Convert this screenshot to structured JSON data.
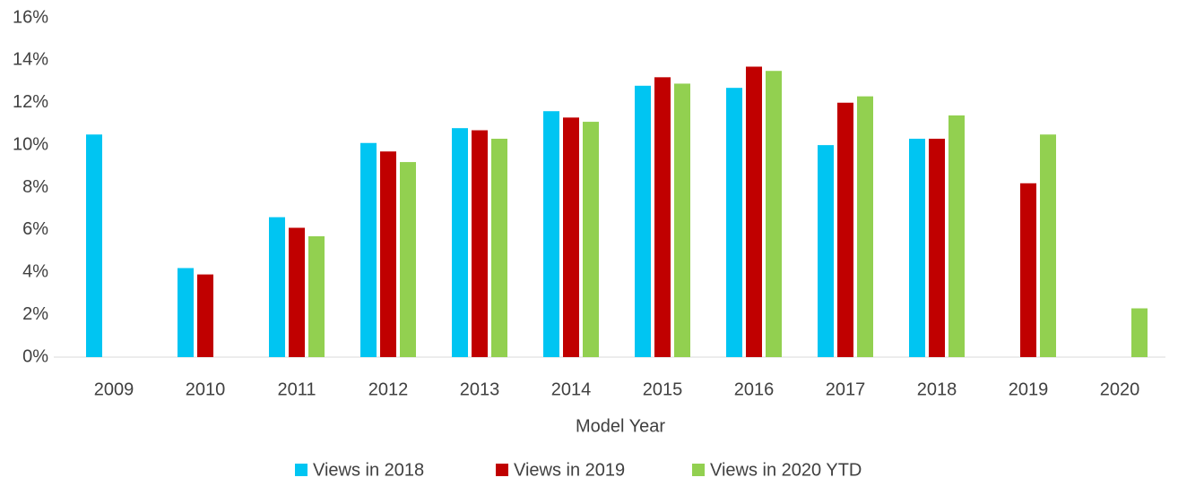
{
  "chart_data": {
    "type": "bar",
    "x_label": "Model Year",
    "categories": [
      "2009",
      "2010",
      "2011",
      "2012",
      "2013",
      "2014",
      "2015",
      "2016",
      "2017",
      "2018",
      "2019",
      "2020"
    ],
    "series": [
      {
        "name": "Views in 2018",
        "color": "#00c5f2",
        "values": [
          10.5,
          4.2,
          6.6,
          10.1,
          10.8,
          11.6,
          12.8,
          12.7,
          10.0,
          10.3,
          null,
          null
        ]
      },
      {
        "name": "Views in 2019",
        "color": "#c00000",
        "values": [
          null,
          3.9,
          6.1,
          9.7,
          10.7,
          11.3,
          13.2,
          13.7,
          12.0,
          10.3,
          8.2,
          null
        ]
      },
      {
        "name": "Views in 2020 YTD",
        "color": "#92d050",
        "values": [
          null,
          null,
          5.7,
          9.2,
          10.3,
          11.1,
          12.9,
          13.5,
          12.3,
          11.4,
          10.5,
          2.3
        ]
      }
    ],
    "ylim": [
      0,
      16
    ],
    "yticks": [
      {
        "value": 0,
        "label": "0%"
      },
      {
        "value": 2,
        "label": "2%"
      },
      {
        "value": 4,
        "label": "4%"
      },
      {
        "value": 6,
        "label": "6%"
      },
      {
        "value": 8,
        "label": "8%"
      },
      {
        "value": 10,
        "label": "10%"
      },
      {
        "value": 12,
        "label": "12%"
      },
      {
        "value": 14,
        "label": "14%"
      },
      {
        "value": 16,
        "label": "16%"
      }
    ],
    "grid": false,
    "legend": "bottom"
  }
}
